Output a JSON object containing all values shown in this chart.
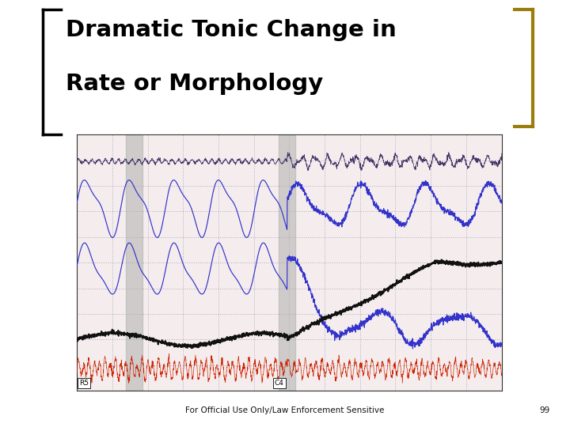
{
  "title_line1": "Dramatic Tonic Change in",
  "title_line2": "Rate or Morphology",
  "footer_text": "For Official Use Only/Law Enforcement Sensitive",
  "footer_number": "99",
  "bg_color": "#ffffff",
  "bracket_color": "#9a7d0a",
  "title_color": "#000000",
  "chart_bg": "#f5eded",
  "grid_color_h": "#8080a0",
  "grid_color_v": "#9090b0",
  "gray_band_color": "#b0b0b0",
  "gray_band_alpha": 0.55,
  "label_R5": "R5",
  "label_C4": "C4",
  "stripe_color": "#cdc89a",
  "stripe_alpha": 0.45,
  "blue_color": "#3333cc",
  "black_color": "#111111",
  "red_color": "#cc2200",
  "top_blue_color": "#555588"
}
